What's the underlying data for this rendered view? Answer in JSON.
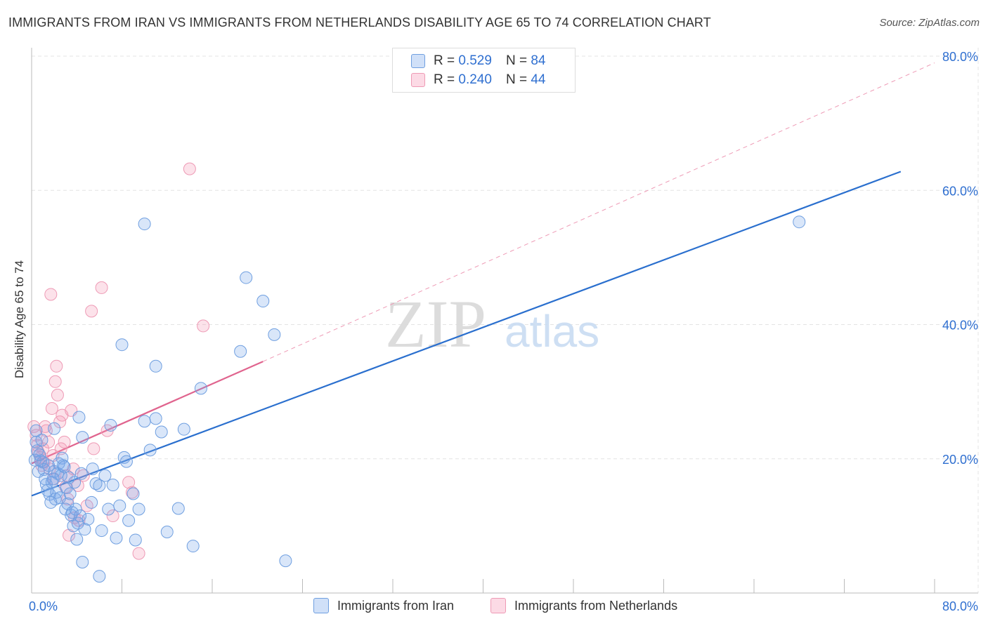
{
  "title": "IMMIGRANTS FROM IRAN VS IMMIGRANTS FROM NETHERLANDS DISABILITY AGE 65 TO 74 CORRELATION CHART",
  "source": "Source: ZipAtlas.com",
  "watermark": {
    "zip": "ZIP",
    "atlas": "atlas"
  },
  "colors": {
    "iran_fill": "rgba(120,165,235,0.28)",
    "iran_stroke": "#6f9fe0",
    "iran_line": "#2a6fce",
    "neth_fill": "rgba(245,150,180,0.28)",
    "neth_stroke": "#ee9ab5",
    "neth_line": "#e0648e",
    "accent_text": "#2f6fd0",
    "grid": "#e4e4e4"
  },
  "legend": {
    "iran": {
      "r_label": "R =",
      "r_value": "0.529",
      "n_label": "N =",
      "n_value": "84"
    },
    "netherlands": {
      "r_label": "R =",
      "r_value": "0.240",
      "n_label": "N =",
      "n_value": "44"
    }
  },
  "bottom_legend": {
    "iran": "Immigrants from Iran",
    "netherlands": "Immigrants from Netherlands"
  },
  "chart_data": {
    "type": "scatter",
    "title": "IMMIGRANTS FROM IRAN VS IMMIGRANTS FROM NETHERLANDS DISABILITY AGE 65 TO 74 CORRELATION CHART",
    "xlabel": "",
    "ylabel": "Disability Age 65 to 74",
    "xlim": [
      0,
      80
    ],
    "ylim": [
      0,
      80
    ],
    "x_tick_labels": [
      "0.0%",
      "80.0%"
    ],
    "y_ticks": [
      20,
      40,
      60,
      80
    ],
    "y_tick_labels": [
      "20.0%",
      "40.0%",
      "60.0%",
      "80.0%"
    ],
    "series": [
      {
        "name": "Immigrants from Iran",
        "r": 0.529,
        "n": 84,
        "trend": {
          "x": [
            0,
            77
          ],
          "y": [
            14.5,
            62.8
          ],
          "style": "solid"
        },
        "points": [
          [
            0.3,
            19.8
          ],
          [
            0.5,
            21.2
          ],
          [
            0.4,
            22.5
          ],
          [
            0.6,
            18.1
          ],
          [
            0.8,
            19.7
          ],
          [
            1.0,
            19.5
          ],
          [
            1.1,
            18.4
          ],
          [
            1.3,
            16.2
          ],
          [
            1.4,
            15.3
          ],
          [
            1.5,
            19.0
          ],
          [
            1.6,
            14.7
          ],
          [
            1.8,
            16.5
          ],
          [
            2.0,
            18.1
          ],
          [
            2.1,
            14.0
          ],
          [
            2.2,
            15.0
          ],
          [
            2.3,
            17.8
          ],
          [
            2.4,
            19.3
          ],
          [
            2.5,
            14.2
          ],
          [
            2.6,
            17.5
          ],
          [
            2.7,
            20.1
          ],
          [
            2.8,
            19.0
          ],
          [
            3.0,
            12.5
          ],
          [
            3.1,
            15.7
          ],
          [
            3.2,
            13.3
          ],
          [
            3.3,
            17.2
          ],
          [
            3.5,
            11.6
          ],
          [
            3.6,
            12.0
          ],
          [
            3.7,
            10.0
          ],
          [
            3.8,
            16.5
          ],
          [
            3.9,
            12.5
          ],
          [
            4.0,
            8.0
          ],
          [
            4.1,
            10.4
          ],
          [
            4.3,
            11.5
          ],
          [
            4.4,
            17.8
          ],
          [
            4.5,
            23.2
          ],
          [
            4.7,
            9.5
          ],
          [
            5.3,
            13.5
          ],
          [
            5.4,
            18.5
          ],
          [
            5.7,
            16.3
          ],
          [
            6.0,
            16.0
          ],
          [
            6.5,
            17.5
          ],
          [
            6.8,
            12.5
          ],
          [
            7.0,
            25.0
          ],
          [
            7.5,
            8.2
          ],
          [
            7.8,
            13.0
          ],
          [
            8.2,
            20.2
          ],
          [
            8.4,
            19.6
          ],
          [
            8.6,
            10.8
          ],
          [
            9.0,
            14.8
          ],
          [
            9.5,
            12.5
          ],
          [
            10.0,
            25.6
          ],
          [
            10.5,
            21.3
          ],
          [
            11.0,
            26.0
          ],
          [
            11.5,
            24.0
          ],
          [
            12.0,
            9.1
          ],
          [
            13.0,
            12.6
          ],
          [
            13.5,
            24.4
          ],
          [
            14.3,
            7.0
          ],
          [
            11.0,
            33.8
          ],
          [
            15.0,
            30.5
          ],
          [
            18.5,
            36.0
          ],
          [
            19.0,
            47.0
          ],
          [
            20.5,
            43.5
          ],
          [
            21.5,
            38.5
          ],
          [
            22.5,
            4.8
          ],
          [
            10.0,
            55.0
          ],
          [
            8.0,
            37.0
          ],
          [
            6.0,
            2.5
          ],
          [
            4.5,
            4.6
          ],
          [
            2.0,
            24.5
          ],
          [
            4.2,
            26.2
          ],
          [
            0.4,
            24.2
          ],
          [
            0.7,
            20.6
          ],
          [
            1.2,
            17.0
          ],
          [
            1.7,
            13.5
          ],
          [
            2.9,
            18.8
          ],
          [
            3.4,
            14.8
          ],
          [
            5.0,
            11.0
          ],
          [
            6.2,
            9.3
          ],
          [
            7.2,
            16.1
          ],
          [
            9.2,
            7.9
          ],
          [
            68.0,
            55.3
          ],
          [
            0.9,
            22.8
          ],
          [
            1.9,
            17.0
          ]
        ]
      },
      {
        "name": "Immigrants from Netherlands",
        "r": 0.24,
        "n": 44,
        "trend": {
          "x": [
            0,
            20.5
          ],
          "y": [
            19.3,
            34.5
          ],
          "style": "solid"
        },
        "trend_extension": {
          "x": [
            20.5,
            80
          ],
          "y": [
            34.5,
            79.0
          ],
          "style": "dashed"
        },
        "points": [
          [
            0.2,
            24.8
          ],
          [
            0.4,
            23.5
          ],
          [
            0.6,
            21.0
          ],
          [
            0.8,
            20.2
          ],
          [
            1.0,
            21.5
          ],
          [
            1.1,
            19.5
          ],
          [
            1.3,
            24.2
          ],
          [
            1.5,
            22.5
          ],
          [
            1.6,
            18.5
          ],
          [
            1.8,
            27.5
          ],
          [
            1.9,
            20.5
          ],
          [
            2.0,
            17.0
          ],
          [
            2.2,
            33.8
          ],
          [
            2.3,
            29.5
          ],
          [
            2.5,
            25.5
          ],
          [
            2.6,
            21.5
          ],
          [
            2.7,
            26.5
          ],
          [
            2.9,
            22.5
          ],
          [
            3.0,
            15.8
          ],
          [
            3.1,
            17.5
          ],
          [
            3.3,
            8.6
          ],
          [
            3.5,
            27.2
          ],
          [
            3.7,
            18.5
          ],
          [
            3.8,
            11.2
          ],
          [
            4.1,
            16.0
          ],
          [
            4.2,
            10.8
          ],
          [
            4.6,
            17.5
          ],
          [
            4.9,
            13.0
          ],
          [
            5.3,
            42.0
          ],
          [
            5.5,
            21.5
          ],
          [
            6.2,
            45.5
          ],
          [
            6.7,
            24.2
          ],
          [
            7.2,
            11.5
          ],
          [
            8.6,
            16.5
          ],
          [
            8.9,
            15.0
          ],
          [
            9.5,
            5.9
          ],
          [
            14.0,
            63.2
          ],
          [
            15.2,
            39.8
          ],
          [
            1.7,
            44.5
          ],
          [
            1.2,
            24.8
          ],
          [
            0.9,
            19.0
          ],
          [
            0.5,
            22.0
          ],
          [
            2.1,
            31.5
          ],
          [
            3.2,
            14.0
          ]
        ]
      }
    ]
  }
}
